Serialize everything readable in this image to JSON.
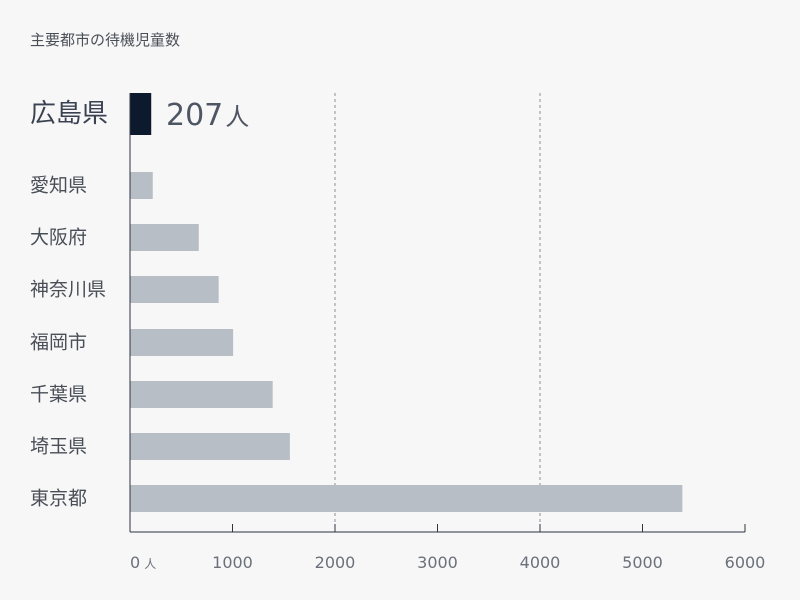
{
  "chart_data": {
    "type": "bar",
    "orientation": "horizontal",
    "title": "主要都市の待機児童数",
    "categories": [
      "広島県",
      "愛知県",
      "大阪府",
      "神奈川県",
      "福岡市",
      "千葉県",
      "埼玉県",
      "東京都"
    ],
    "values": [
      207,
      222,
      671,
      865,
      1006,
      1392,
      1560,
      5389
    ],
    "unit": "人",
    "highlight": {
      "category": "広島県",
      "value_label": "207",
      "unit_label": "人",
      "color": "#0d1a2d"
    },
    "bar_color": "#b8bec6",
    "xlim": [
      0,
      6000
    ],
    "xticks": [
      0,
      1000,
      2000,
      3000,
      4000,
      5000,
      6000
    ],
    "xtick_labels": [
      "0",
      "1000",
      "2000",
      "3000",
      "4000",
      "5000",
      "6000"
    ],
    "zero_tick_unit": "人",
    "gridlines": [
      2000,
      4000
    ],
    "xlabel": "",
    "ylabel": ""
  }
}
